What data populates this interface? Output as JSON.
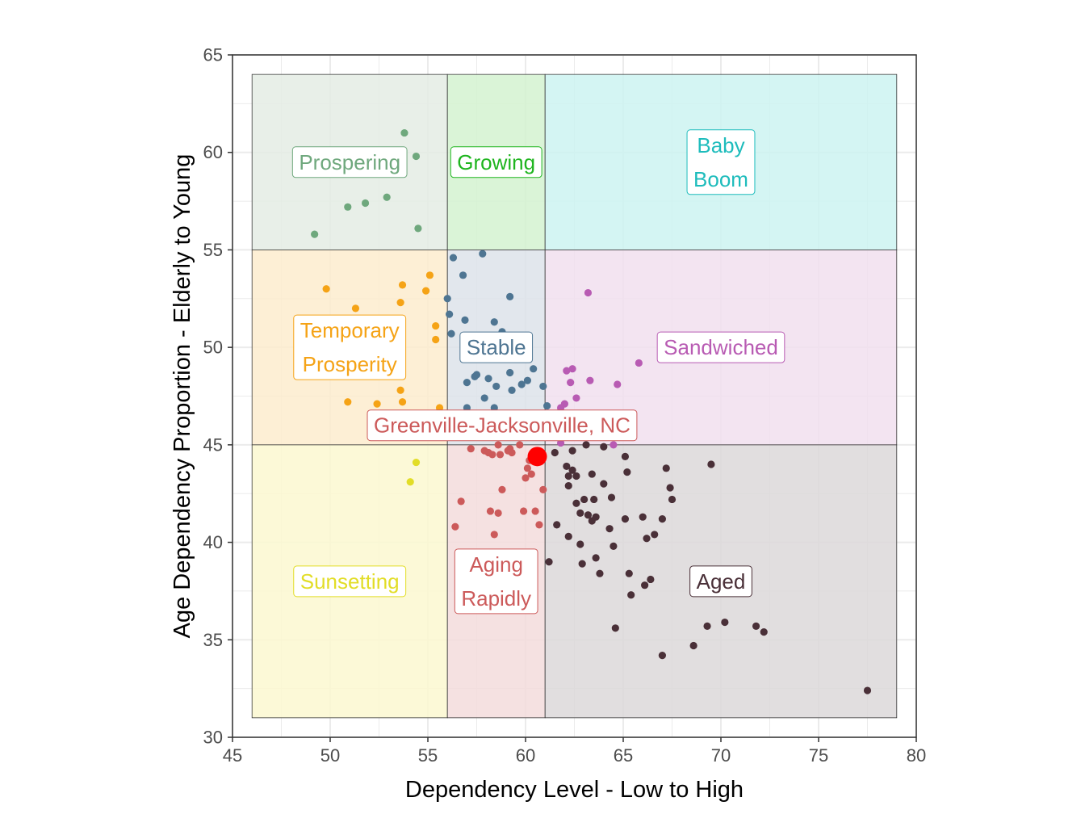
{
  "chart_data": {
    "type": "scatter",
    "title": "",
    "xlabel": "Dependency Level - Low to High",
    "ylabel": "Age Dependency Proportion - Elderly to Young",
    "xlim": [
      45,
      80
    ],
    "ylim": [
      30,
      65
    ],
    "x_ticks": [
      "45",
      "50",
      "55",
      "60",
      "65",
      "70",
      "75",
      "80"
    ],
    "y_ticks": [
      "30",
      "35",
      "40",
      "45",
      "50",
      "55",
      "60",
      "65"
    ],
    "grid": true,
    "zones": [
      {
        "name": "Prospering",
        "label_lines": [
          "Prospering"
        ],
        "x": [
          46,
          56
        ],
        "y": [
          55,
          64
        ],
        "fill": "#e4ece4",
        "color": "#6fa87d",
        "label_at": [
          51,
          59.5
        ]
      },
      {
        "name": "Growing",
        "label_lines": [
          "Growing"
        ],
        "x": [
          56,
          61
        ],
        "y": [
          55,
          64
        ],
        "fill": "#d4f2d0",
        "color": "#1fb51f",
        "label_at": [
          58.5,
          59.5
        ]
      },
      {
        "name": "Baby Boom",
        "label_lines": [
          "Baby",
          "Boom"
        ],
        "x": [
          61,
          79
        ],
        "y": [
          55,
          64
        ],
        "fill": "#cdf3f1",
        "color": "#1ebcbc",
        "label_at": [
          70,
          59.5
        ]
      },
      {
        "name": "Temporary Prosperity",
        "label_lines": [
          "Temporary",
          "Prosperity"
        ],
        "x": [
          46,
          56
        ],
        "y": [
          45,
          55
        ],
        "fill": "#fdecce",
        "color": "#f5a316",
        "label_at": [
          51,
          50
        ]
      },
      {
        "name": "Stable",
        "label_lines": [
          "Stable"
        ],
        "x": [
          56,
          61
        ],
        "y": [
          45,
          55
        ],
        "fill": "#dde3ea",
        "color": "#4e7592",
        "label_at": [
          58.5,
          50
        ]
      },
      {
        "name": "Sandwiched",
        "label_lines": [
          "Sandwiched"
        ],
        "x": [
          61,
          79
        ],
        "y": [
          45,
          55
        ],
        "fill": "#f1dfef",
        "color": "#b85bb3",
        "label_at": [
          70,
          50
        ]
      },
      {
        "name": "Sunsetting",
        "label_lines": [
          "Sunsetting"
        ],
        "x": [
          46,
          56
        ],
        "y": [
          31,
          45
        ],
        "fill": "#fbf8d0",
        "color": "#e2dd27",
        "label_at": [
          51,
          38
        ]
      },
      {
        "name": "Aging Rapidly",
        "label_lines": [
          "Aging",
          "Rapidly"
        ],
        "x": [
          56,
          61
        ],
        "y": [
          31,
          45
        ],
        "fill": "#f3dcdc",
        "color": "#cc5a5a",
        "label_at": [
          58.5,
          38
        ]
      },
      {
        "name": "Aged",
        "label_lines": [
          "Aged"
        ],
        "x": [
          61,
          79
        ],
        "y": [
          31,
          45
        ],
        "fill": "#dcd8d9",
        "color": "#4a3038",
        "label_at": [
          70,
          38
        ]
      }
    ],
    "series": [
      {
        "name": "Prospering",
        "color": "#6fa87d",
        "points": [
          [
            53.8,
            61.0
          ],
          [
            54.4,
            59.8
          ],
          [
            51.8,
            57.4
          ],
          [
            50.9,
            57.2
          ],
          [
            52.9,
            57.7
          ],
          [
            49.2,
            55.8
          ],
          [
            54.5,
            56.1
          ]
        ]
      },
      {
        "name": "Temporary Prosperity",
        "color": "#f5a316",
        "points": [
          [
            49.8,
            53.0
          ],
          [
            53.7,
            53.2
          ],
          [
            55.1,
            53.7
          ],
          [
            54.9,
            52.9
          ],
          [
            53.6,
            52.3
          ],
          [
            51.3,
            52.0
          ],
          [
            55.4,
            51.1
          ],
          [
            55.4,
            50.4
          ],
          [
            50.9,
            47.2
          ],
          [
            52.4,
            47.1
          ],
          [
            53.6,
            47.8
          ],
          [
            53.7,
            47.2
          ],
          [
            55.6,
            46.9
          ],
          [
            54.2,
            46.1
          ]
        ]
      },
      {
        "name": "Stable",
        "color": "#4e7592",
        "points": [
          [
            56.3,
            54.6
          ],
          [
            57.8,
            54.8
          ],
          [
            56.8,
            53.7
          ],
          [
            56.0,
            52.5
          ],
          [
            59.2,
            52.6
          ],
          [
            56.1,
            51.7
          ],
          [
            56.9,
            51.4
          ],
          [
            58.4,
            51.3
          ],
          [
            56.2,
            50.7
          ],
          [
            58.8,
            50.8
          ],
          [
            57.0,
            48.2
          ],
          [
            57.4,
            48.5
          ],
          [
            57.5,
            48.6
          ],
          [
            58.1,
            48.4
          ],
          [
            59.2,
            48.7
          ],
          [
            60.4,
            48.9
          ],
          [
            60.1,
            48.3
          ],
          [
            60.9,
            48.0
          ],
          [
            59.8,
            48.1
          ],
          [
            58.5,
            48.0
          ],
          [
            59.3,
            47.8
          ],
          [
            57.9,
            47.4
          ],
          [
            58.9,
            46.4
          ],
          [
            59.5,
            46.5
          ],
          [
            60.5,
            46.6
          ],
          [
            61.1,
            47.0
          ],
          [
            59.6,
            45.9
          ],
          [
            57.6,
            45.6
          ],
          [
            57.0,
            46.9
          ],
          [
            58.4,
            46.9
          ],
          [
            59.2,
            46.0
          ]
        ]
      },
      {
        "name": "Sandwiched",
        "color": "#b85bb3",
        "points": [
          [
            63.2,
            52.8
          ],
          [
            65.8,
            49.2
          ],
          [
            62.1,
            48.8
          ],
          [
            62.4,
            48.9
          ],
          [
            63.3,
            48.3
          ],
          [
            64.7,
            48.1
          ],
          [
            62.3,
            48.2
          ],
          [
            62.6,
            47.4
          ],
          [
            62.0,
            47.1
          ],
          [
            61.8,
            46.9
          ],
          [
            61.8,
            46.2
          ],
          [
            61.1,
            45.7
          ],
          [
            61.5,
            45.6
          ],
          [
            62.1,
            45.4
          ],
          [
            64.5,
            45.0
          ],
          [
            61.8,
            45.1
          ]
        ]
      },
      {
        "name": "Sunsetting",
        "color": "#e2dd27",
        "points": [
          [
            54.4,
            44.1
          ],
          [
            54.1,
            43.1
          ]
        ]
      },
      {
        "name": "Aging Rapidly",
        "color": "#cc5a5a",
        "points": [
          [
            57.2,
            44.8
          ],
          [
            57.9,
            44.7
          ],
          [
            58.1,
            44.6
          ],
          [
            58.3,
            44.5
          ],
          [
            58.6,
            45.0
          ],
          [
            58.7,
            44.5
          ],
          [
            59.1,
            44.7
          ],
          [
            59.3,
            44.6
          ],
          [
            59.2,
            44.8
          ],
          [
            59.7,
            45.0
          ],
          [
            60.1,
            43.8
          ],
          [
            60.3,
            43.5
          ],
          [
            60.0,
            43.3
          ],
          [
            60.2,
            44.2
          ],
          [
            60.9,
            42.7
          ],
          [
            58.8,
            42.7
          ],
          [
            56.7,
            42.1
          ],
          [
            58.2,
            41.6
          ],
          [
            58.6,
            41.5
          ],
          [
            59.9,
            41.6
          ],
          [
            60.5,
            41.6
          ],
          [
            60.7,
            40.9
          ],
          [
            56.4,
            40.8
          ],
          [
            58.4,
            40.4
          ],
          [
            60.1,
            45.4
          ]
        ]
      },
      {
        "name": "Aged",
        "color": "#4a3038",
        "points": [
          [
            61.5,
            44.6
          ],
          [
            62.4,
            44.7
          ],
          [
            63.1,
            45.0
          ],
          [
            64.0,
            44.9
          ],
          [
            65.1,
            44.4
          ],
          [
            65.2,
            43.6
          ],
          [
            62.1,
            43.9
          ],
          [
            62.4,
            43.7
          ],
          [
            62.2,
            43.4
          ],
          [
            62.6,
            43.4
          ],
          [
            63.4,
            43.5
          ],
          [
            64.0,
            43.0
          ],
          [
            62.2,
            42.9
          ],
          [
            62.6,
            42.0
          ],
          [
            63.0,
            42.2
          ],
          [
            63.5,
            42.2
          ],
          [
            64.4,
            42.3
          ],
          [
            67.2,
            43.8
          ],
          [
            69.5,
            44.0
          ],
          [
            67.4,
            42.8
          ],
          [
            67.5,
            42.2
          ],
          [
            61.6,
            40.9
          ],
          [
            62.2,
            40.3
          ],
          [
            62.8,
            41.5
          ],
          [
            63.4,
            41.1
          ],
          [
            63.2,
            41.4
          ],
          [
            63.6,
            41.3
          ],
          [
            64.3,
            40.7
          ],
          [
            65.1,
            41.2
          ],
          [
            66.0,
            41.3
          ],
          [
            67.0,
            41.2
          ],
          [
            66.6,
            40.4
          ],
          [
            66.2,
            40.2
          ],
          [
            62.8,
            39.9
          ],
          [
            64.5,
            39.8
          ],
          [
            61.2,
            39.0
          ],
          [
            62.9,
            38.9
          ],
          [
            63.6,
            39.2
          ],
          [
            63.8,
            38.4
          ],
          [
            65.3,
            38.4
          ],
          [
            66.1,
            37.8
          ],
          [
            66.4,
            38.1
          ],
          [
            65.4,
            37.3
          ],
          [
            64.6,
            35.6
          ],
          [
            69.3,
            35.7
          ],
          [
            70.2,
            35.9
          ],
          [
            71.8,
            35.7
          ],
          [
            72.2,
            35.4
          ],
          [
            68.6,
            34.7
          ],
          [
            67.0,
            34.2
          ],
          [
            77.5,
            32.4
          ]
        ]
      }
    ],
    "highlight": {
      "label": "Greenville-Jacksonville, NC",
      "x": 60.6,
      "y": 44.4,
      "color": "#ff0000",
      "label_color": "#cc5a5a",
      "label_at": [
        58.8,
        46.0
      ]
    }
  }
}
